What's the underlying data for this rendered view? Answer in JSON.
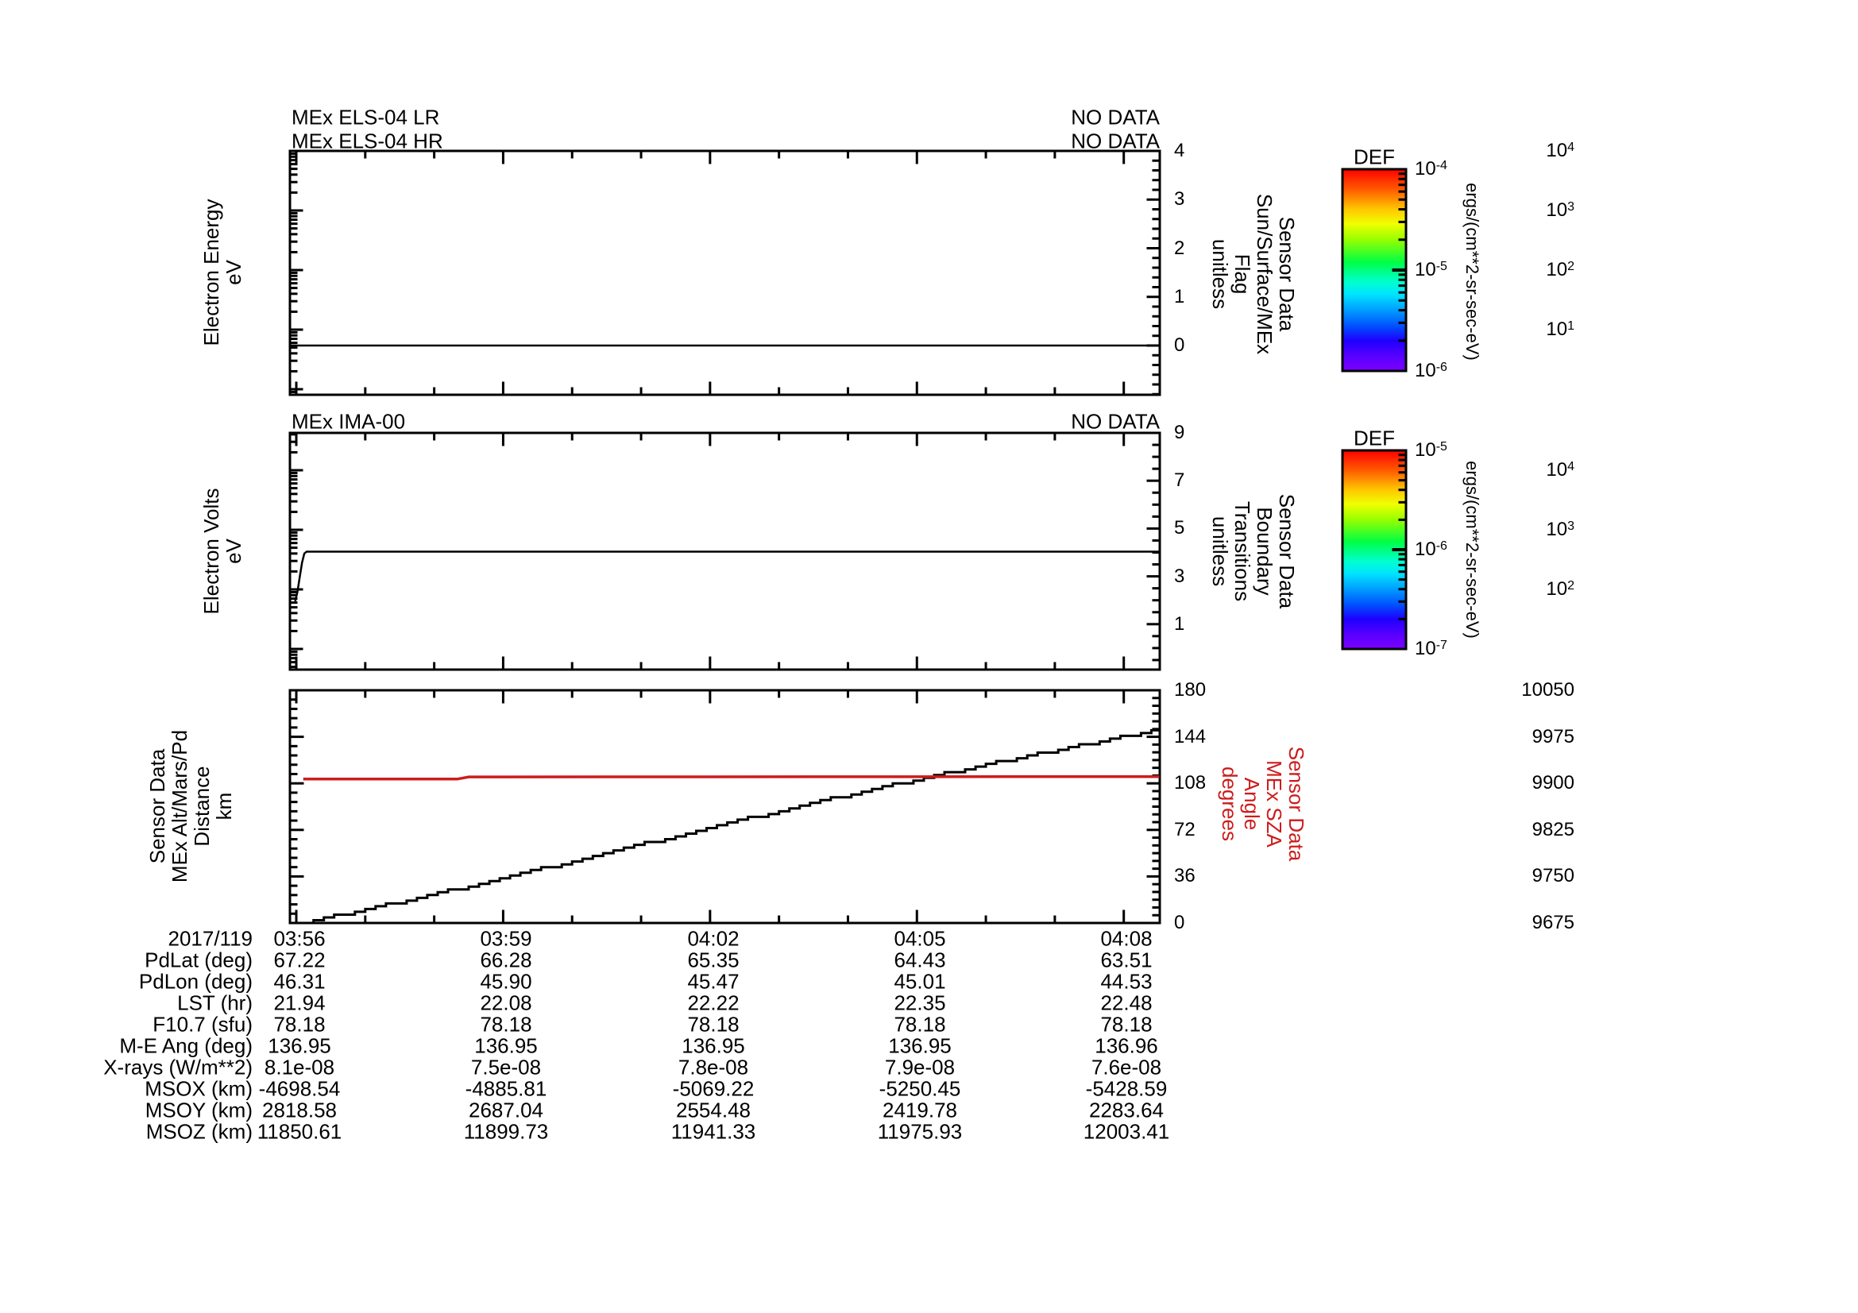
{
  "chart_data": [
    {
      "type": "line",
      "titles": [
        "MEx ELS-04 LR",
        "MEx ELS-04 HR"
      ],
      "status_labels": [
        "NO DATA",
        "NO DATA"
      ],
      "left_axis": {
        "label": "Electron Energy\neV",
        "scale": "log",
        "tick_labels": [
          "10^4",
          "10^3",
          "10^2",
          "10^1"
        ],
        "tick_exponents": [
          4,
          3,
          2,
          1
        ]
      },
      "right_axis": {
        "label": "Sensor Data\nSun/Surface/MEx\nFlag\nunitless",
        "scale": "linear",
        "tick_labels": [
          "4",
          "3",
          "2",
          "1",
          "0"
        ],
        "tick_values": [
          4,
          3,
          2,
          1,
          0
        ],
        "range": [
          -1,
          4
        ],
        "minor_step": 0.2
      },
      "series": [
        {
          "name": "sun-surface-mex-flag",
          "axis": "right",
          "color": "#000000",
          "points_t_v": [
            [
              -5.5,
              0
            ],
            [
              751.6,
              0
            ]
          ]
        }
      ]
    },
    {
      "type": "line",
      "titles": [
        "MEx IMA-00"
      ],
      "status_labels": [
        "NO DATA"
      ],
      "left_axis": {
        "label": "Electron Volts\neV",
        "scale": "log",
        "tick_labels": [
          "10^4",
          "10^3",
          "10^2"
        ],
        "tick_exponents": [
          4,
          3,
          2
        ]
      },
      "right_axis": {
        "label": "Sensor Data\nBoundary\nTransitions\nunitless",
        "scale": "linear",
        "tick_labels": [
          "9",
          "7",
          "5",
          "3",
          "1"
        ],
        "tick_values": [
          9,
          7,
          5,
          3,
          1
        ],
        "range": [
          -1,
          9
        ],
        "minor_step": 0.5
      },
      "series": [
        {
          "name": "ima-electron-volts",
          "axis": "left",
          "color": "#000000",
          "points_t_v": [
            [
              -1,
              63
            ],
            [
              1,
              90
            ],
            [
              3,
              160
            ],
            [
              5,
              280
            ],
            [
              7,
              400
            ],
            [
              9,
              430
            ],
            [
              751.6,
              430
            ]
          ]
        }
      ]
    },
    {
      "type": "line",
      "titles": [],
      "x_axis": {
        "date_label": "2017/119",
        "tick_labels": [
          "03:56",
          "03:59",
          "04:02",
          "04:05",
          "04:08"
        ],
        "tick_seconds": [
          0,
          180,
          360,
          540,
          720
        ]
      },
      "left_axis": {
        "label": "Sensor Data\nMEx Alt/Mars/Pd\nDistance\nkm",
        "scale": "linear",
        "tick_labels": [
          "10050",
          "9975",
          "9900",
          "9825",
          "9750",
          "9675"
        ],
        "tick_values": [
          10050,
          9975,
          9900,
          9825,
          9750,
          9675
        ],
        "range": [
          9675,
          10050
        ],
        "minor_step": 15
      },
      "right_axis": {
        "label": "Sensor Data\nMEx SZA\nAngle\ndegrees",
        "scale": "linear",
        "tick_labels": [
          "180",
          "144",
          "108",
          "72",
          "36",
          "0"
        ],
        "tick_values": [
          180,
          144,
          108,
          72,
          36,
          0
        ],
        "range": [
          0,
          180
        ],
        "minor_step": 6
      },
      "series": [
        {
          "name": "mex-altitude-km",
          "axis": "left",
          "color": "#000000",
          "style": "stair",
          "points_t_v": [
            [
              6,
              9676
            ],
            [
              60,
              9697
            ],
            [
              120,
              9722
            ],
            [
              180,
              9748
            ],
            [
              240,
              9775
            ],
            [
              300,
              9802
            ],
            [
              360,
              9829
            ],
            [
              420,
              9856
            ],
            [
              480,
              9882
            ],
            [
              540,
              9907
            ],
            [
              600,
              9931
            ],
            [
              660,
              9954
            ],
            [
              720,
              9976
            ],
            [
              751,
              9987
            ]
          ]
        },
        {
          "name": "mex-sza-degrees",
          "axis": "right",
          "color": "#cc1c1c",
          "points_t_v": [
            [
              6,
              111.3
            ],
            [
              140,
              111.3
            ],
            [
              150,
              113.0
            ],
            [
              751,
              113.2
            ]
          ]
        }
      ]
    }
  ],
  "colorbars": [
    {
      "title": "DEF",
      "tick_labels": [
        "10^-4",
        "10^-5",
        "10^-6"
      ],
      "unit": "ergs/(cm**2-sr-sec-eV)"
    },
    {
      "title": "DEF",
      "tick_labels": [
        "10^-5",
        "10^-6",
        "10^-7"
      ],
      "unit": "ergs/(cm**2-sr-sec-eV)"
    }
  ],
  "table": {
    "date_label": "2017/119",
    "columns": [
      "03:56",
      "03:59",
      "04:02",
      "04:05",
      "04:08"
    ],
    "rows": [
      {
        "label": "PdLat (deg)",
        "values": [
          "67.22",
          "66.28",
          "65.35",
          "64.43",
          "63.51"
        ]
      },
      {
        "label": "PdLon (deg)",
        "values": [
          "46.31",
          "45.90",
          "45.47",
          "45.01",
          "44.53"
        ]
      },
      {
        "label": "LST (hr)",
        "values": [
          "21.94",
          "22.08",
          "22.22",
          "22.35",
          "22.48"
        ]
      },
      {
        "label": "F10.7 (sfu)",
        "values": [
          "78.18",
          "78.18",
          "78.18",
          "78.18",
          "78.18"
        ]
      },
      {
        "label": "M-E Ang (deg)",
        "values": [
          "136.95",
          "136.95",
          "136.95",
          "136.95",
          "136.96"
        ]
      },
      {
        "label": "X-rays (W/m**2)",
        "values": [
          "8.1e-08",
          "7.5e-08",
          "7.8e-08",
          "7.9e-08",
          "7.6e-08"
        ]
      },
      {
        "label": "MSOX (km)",
        "values": [
          "-4698.54",
          "-4885.81",
          "-5069.22",
          "-5250.45",
          "-5428.59"
        ]
      },
      {
        "label": "MSOY (km)",
        "values": [
          "2818.58",
          "2687.04",
          "2554.48",
          "2419.78",
          "2283.64"
        ]
      },
      {
        "label": "MSOZ (km)",
        "values": [
          "11850.61",
          "11899.73",
          "11941.33",
          "11975.93",
          "12003.41"
        ]
      }
    ]
  },
  "colors": {
    "accent_red": "#cc1c1c",
    "line_black": "#000000"
  }
}
